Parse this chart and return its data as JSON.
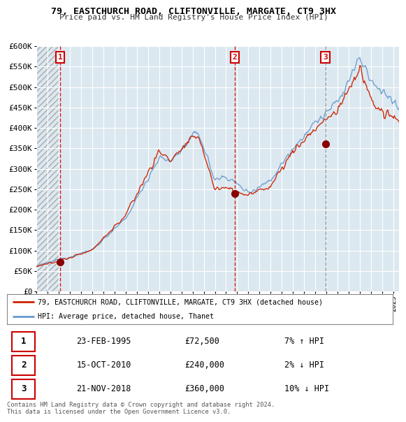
{
  "title": "79, EASTCHURCH ROAD, CLIFTONVILLE, MARGATE, CT9 3HX",
  "subtitle": "Price paid vs. HM Land Registry's House Price Index (HPI)",
  "ylabel_values": [
    "£0",
    "£50K",
    "£100K",
    "£150K",
    "£200K",
    "£250K",
    "£300K",
    "£350K",
    "£400K",
    "£450K",
    "£500K",
    "£550K",
    "£600K"
  ],
  "ylim": [
    0,
    600000
  ],
  "yticks": [
    0,
    50000,
    100000,
    150000,
    200000,
    250000,
    300000,
    350000,
    400000,
    450000,
    500000,
    550000,
    600000
  ],
  "xmin": 1993.0,
  "xmax": 2025.5,
  "sale_dates": [
    1995.15,
    2010.79,
    2018.9
  ],
  "sale_prices": [
    72500,
    240000,
    360000
  ],
  "sale_labels": [
    "1",
    "2",
    "3"
  ],
  "sale_vline_colors": [
    "#cc0000",
    "#cc0000",
    "#888888"
  ],
  "sale_vline_styles": [
    "--",
    "--",
    "--"
  ],
  "red_line_color": "#cc2200",
  "blue_line_color": "#6699cc",
  "marker_color": "#880000",
  "legend_label_red": "79, EASTCHURCH ROAD, CLIFTONVILLE, MARGATE, CT9 3HX (detached house)",
  "legend_label_blue": "HPI: Average price, detached house, Thanet",
  "table_data": [
    [
      "1",
      "23-FEB-1995",
      "£72,500",
      "7% ↑ HPI"
    ],
    [
      "2",
      "15-OCT-2010",
      "£240,000",
      "2% ↓ HPI"
    ],
    [
      "3",
      "21-NOV-2018",
      "£360,000",
      "10% ↓ HPI"
    ]
  ],
  "footnote": "Contains HM Land Registry data © Crown copyright and database right 2024.\nThis data is licensed under the Open Government Licence v3.0.",
  "bg_color": "#ffffff",
  "plot_bg_color": "#dce8f0",
  "grid_color": "#ffffff"
}
